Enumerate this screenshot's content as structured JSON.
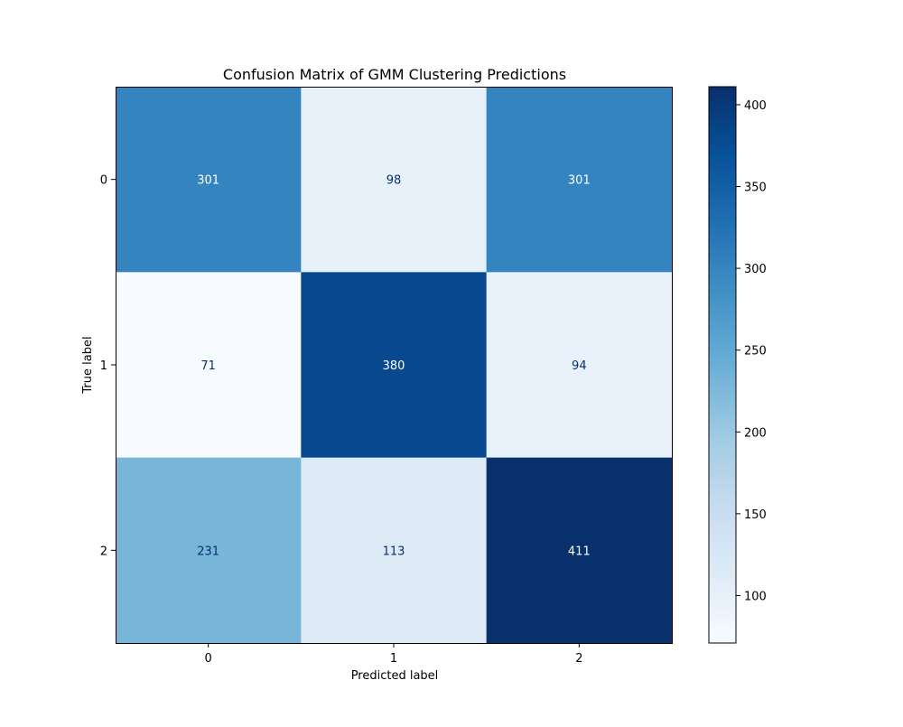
{
  "chart_data": {
    "type": "heatmap",
    "title": "Confusion Matrix of GMM Clustering Predictions",
    "xlabel": "Predicted label",
    "ylabel": "True label",
    "x_categories": [
      "0",
      "1",
      "2"
    ],
    "y_categories": [
      "0",
      "1",
      "2"
    ],
    "values": [
      [
        301,
        98,
        301
      ],
      [
        71,
        380,
        94
      ],
      [
        231,
        113,
        411
      ]
    ],
    "colormap": "Blues",
    "color_range": [
      71,
      411
    ],
    "colorbar_ticks": [
      100,
      150,
      200,
      250,
      300,
      350,
      400
    ],
    "colorbar_tick_labels": [
      "100",
      "150",
      "200",
      "250",
      "300",
      "350",
      "400"
    ],
    "annotation_colors": {
      "dark": "#08306b",
      "light": "#ffffff"
    }
  }
}
